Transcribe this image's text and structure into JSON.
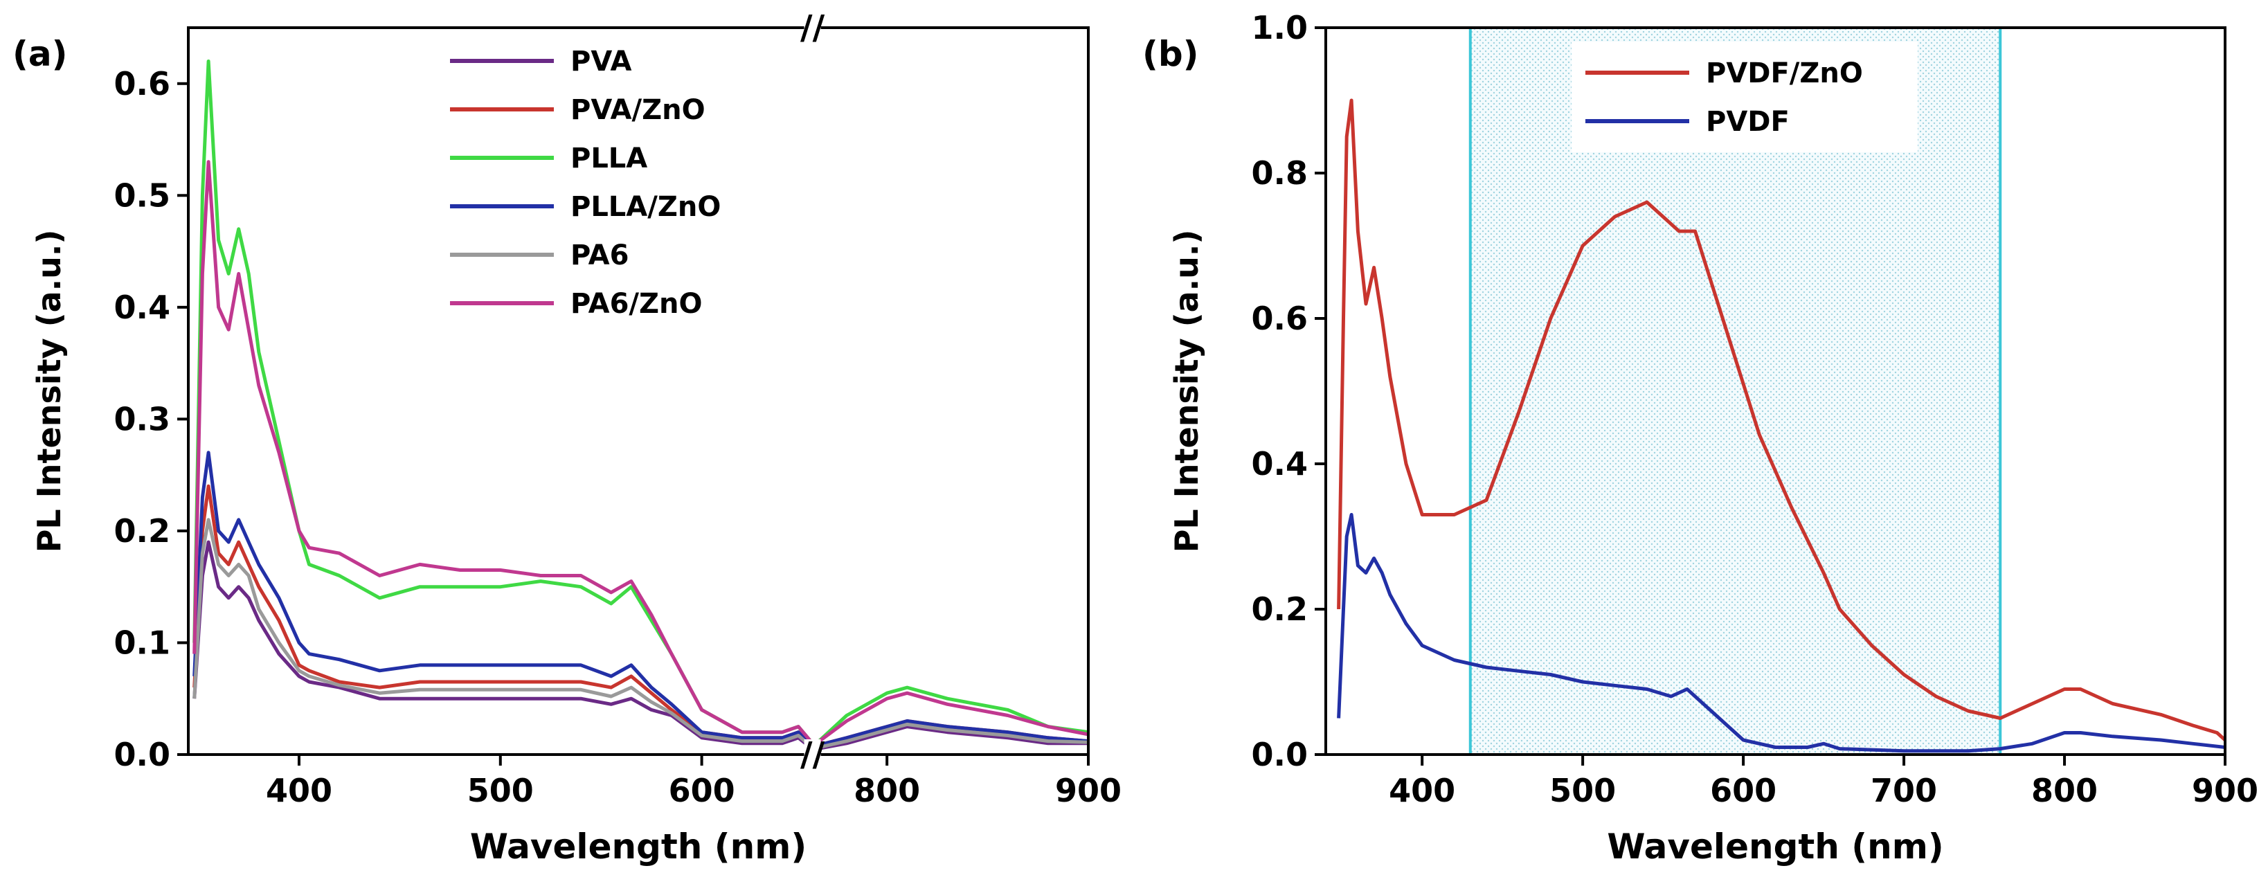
{
  "chart_data": [
    {
      "type": "line",
      "panel_label": "(a)",
      "xlabel": "Wavelength (nm)",
      "ylabel": "PL Intensity (a.u.)",
      "xlim": [
        345,
        900
      ],
      "ylim": [
        0,
        0.65
      ],
      "x_break": [
        655,
        763
      ],
      "x_break_symbol": "//",
      "x_ticks": [
        400,
        500,
        600,
        800,
        900
      ],
      "x_tick_labels": [
        "400",
        "500",
        "600",
        "800",
        "900"
      ],
      "y_ticks": [
        0.0,
        0.1,
        0.2,
        0.3,
        0.4,
        0.5,
        0.6
      ],
      "y_tick_labels": [
        "0.0",
        "0.1",
        "0.2",
        "0.3",
        "0.4",
        "0.5",
        "0.6"
      ],
      "legend_position": "top-center",
      "series": [
        {
          "name": "PVA",
          "color": "#6a2a86",
          "x": [
            348,
            352,
            355,
            360,
            365,
            370,
            375,
            380,
            390,
            400,
            405,
            420,
            440,
            460,
            480,
            500,
            520,
            540,
            555,
            565,
            575,
            585,
            600,
            620,
            640,
            648,
            655,
            765,
            780,
            800,
            810,
            830,
            860,
            880,
            900
          ],
          "y": [
            0.05,
            0.16,
            0.19,
            0.15,
            0.14,
            0.15,
            0.14,
            0.12,
            0.09,
            0.07,
            0.065,
            0.06,
            0.05,
            0.05,
            0.05,
            0.05,
            0.05,
            0.05,
            0.045,
            0.05,
            0.04,
            0.035,
            0.015,
            0.01,
            0.01,
            0.015,
            0.005,
            0.005,
            0.01,
            0.02,
            0.025,
            0.02,
            0.015,
            0.01,
            0.01
          ]
        },
        {
          "name": "PVA/ZnO",
          "color": "#c8352e",
          "x": [
            348,
            352,
            355,
            360,
            365,
            370,
            375,
            380,
            390,
            400,
            405,
            420,
            440,
            460,
            480,
            500,
            520,
            540,
            555,
            565,
            575,
            585,
            600,
            620,
            640,
            648,
            655,
            765,
            780,
            800,
            810,
            830,
            860,
            880,
            900
          ],
          "y": [
            0.06,
            0.2,
            0.24,
            0.18,
            0.17,
            0.19,
            0.17,
            0.15,
            0.12,
            0.08,
            0.075,
            0.065,
            0.06,
            0.065,
            0.065,
            0.065,
            0.065,
            0.065,
            0.06,
            0.07,
            0.055,
            0.04,
            0.02,
            0.015,
            0.015,
            0.02,
            0.008,
            0.008,
            0.015,
            0.025,
            0.03,
            0.025,
            0.02,
            0.015,
            0.012
          ]
        },
        {
          "name": "PLLA",
          "color": "#3fd944",
          "x": [
            348,
            352,
            355,
            360,
            365,
            370,
            375,
            380,
            390,
            400,
            405,
            420,
            440,
            460,
            480,
            500,
            520,
            540,
            555,
            565,
            575,
            585,
            600,
            620,
            640,
            648,
            655,
            765,
            780,
            800,
            810,
            830,
            860,
            880,
            900
          ],
          "y": [
            0.1,
            0.5,
            0.62,
            0.46,
            0.43,
            0.47,
            0.43,
            0.36,
            0.28,
            0.2,
            0.17,
            0.16,
            0.14,
            0.15,
            0.15,
            0.15,
            0.155,
            0.15,
            0.135,
            0.15,
            0.12,
            0.09,
            0.04,
            0.02,
            0.02,
            0.025,
            0.01,
            0.01,
            0.035,
            0.055,
            0.06,
            0.05,
            0.04,
            0.025,
            0.02
          ]
        },
        {
          "name": "PLLA/ZnO",
          "color": "#2230a6",
          "x": [
            348,
            352,
            355,
            360,
            365,
            370,
            375,
            380,
            390,
            400,
            405,
            420,
            440,
            460,
            480,
            500,
            520,
            540,
            555,
            565,
            575,
            585,
            600,
            620,
            640,
            648,
            655,
            765,
            780,
            800,
            810,
            830,
            860,
            880,
            900
          ],
          "y": [
            0.07,
            0.23,
            0.27,
            0.2,
            0.19,
            0.21,
            0.19,
            0.17,
            0.14,
            0.1,
            0.09,
            0.085,
            0.075,
            0.08,
            0.08,
            0.08,
            0.08,
            0.08,
            0.07,
            0.08,
            0.06,
            0.045,
            0.02,
            0.015,
            0.015,
            0.02,
            0.008,
            0.008,
            0.015,
            0.025,
            0.03,
            0.025,
            0.02,
            0.015,
            0.012
          ]
        },
        {
          "name": "PA6",
          "color": "#9a9a9a",
          "x": [
            348,
            352,
            355,
            360,
            365,
            370,
            375,
            380,
            390,
            400,
            405,
            420,
            440,
            460,
            480,
            500,
            520,
            540,
            555,
            565,
            575,
            585,
            600,
            620,
            640,
            648,
            655,
            765,
            780,
            800,
            810,
            830,
            860,
            880,
            900
          ],
          "y": [
            0.05,
            0.18,
            0.21,
            0.17,
            0.16,
            0.17,
            0.16,
            0.13,
            0.1,
            0.075,
            0.07,
            0.062,
            0.055,
            0.058,
            0.058,
            0.058,
            0.058,
            0.058,
            0.052,
            0.06,
            0.047,
            0.037,
            0.017,
            0.012,
            0.012,
            0.017,
            0.006,
            0.006,
            0.012,
            0.022,
            0.027,
            0.022,
            0.017,
            0.012,
            0.011
          ]
        },
        {
          "name": "PA6/ZnO",
          "color": "#c0388f",
          "x": [
            348,
            352,
            355,
            360,
            365,
            370,
            375,
            380,
            390,
            400,
            405,
            420,
            440,
            460,
            480,
            500,
            520,
            540,
            555,
            565,
            575,
            585,
            600,
            620,
            640,
            648,
            655,
            765,
            780,
            800,
            810,
            830,
            860,
            880,
            900
          ],
          "y": [
            0.09,
            0.43,
            0.53,
            0.4,
            0.38,
            0.43,
            0.38,
            0.33,
            0.27,
            0.2,
            0.185,
            0.18,
            0.16,
            0.17,
            0.165,
            0.165,
            0.16,
            0.16,
            0.145,
            0.155,
            0.125,
            0.09,
            0.04,
            0.02,
            0.02,
            0.025,
            0.01,
            0.01,
            0.03,
            0.05,
            0.055,
            0.045,
            0.035,
            0.025,
            0.018
          ]
        }
      ]
    },
    {
      "type": "line",
      "panel_label": "(b)",
      "xlabel": "Wavelength (nm)",
      "ylabel": "PL Intensity (a.u.)",
      "xlim": [
        340,
        900
      ],
      "ylim": [
        0,
        1.0
      ],
      "x_ticks": [
        400,
        500,
        600,
        700,
        800,
        900
      ],
      "x_tick_labels": [
        "400",
        "500",
        "600",
        "700",
        "800",
        "900"
      ],
      "y_ticks": [
        0.0,
        0.2,
        0.4,
        0.6,
        0.8,
        1.0
      ],
      "y_tick_labels": [
        "0.0",
        "0.2",
        "0.4",
        "0.6",
        "0.8",
        "1.0"
      ],
      "legend_position": "top-center",
      "highlight_region": {
        "x_range": [
          430,
          760
        ],
        "color": "#3cc7d8"
      },
      "series": [
        {
          "name": "PVDF/ZnO",
          "color": "#c8352e",
          "x": [
            348,
            351,
            353,
            356,
            360,
            365,
            370,
            375,
            380,
            390,
            400,
            405,
            420,
            440,
            460,
            480,
            500,
            520,
            540,
            550,
            560,
            570,
            590,
            610,
            630,
            650,
            660,
            680,
            700,
            720,
            740,
            760,
            780,
            800,
            810,
            830,
            860,
            880,
            895,
            900
          ],
          "y": [
            0.2,
            0.6,
            0.85,
            0.9,
            0.72,
            0.62,
            0.67,
            0.6,
            0.52,
            0.4,
            0.33,
            0.33,
            0.33,
            0.35,
            0.47,
            0.6,
            0.7,
            0.74,
            0.76,
            0.74,
            0.72,
            0.72,
            0.58,
            0.44,
            0.34,
            0.25,
            0.2,
            0.15,
            0.11,
            0.08,
            0.06,
            0.05,
            0.07,
            0.09,
            0.09,
            0.07,
            0.055,
            0.04,
            0.03,
            0.02
          ]
        },
        {
          "name": "PVDF",
          "color": "#2230a6",
          "x": [
            348,
            351,
            353,
            356,
            360,
            365,
            370,
            375,
            380,
            390,
            400,
            420,
            440,
            460,
            480,
            500,
            520,
            540,
            555,
            565,
            575,
            590,
            600,
            620,
            640,
            650,
            660,
            700,
            740,
            760,
            780,
            800,
            810,
            830,
            860,
            880,
            900
          ],
          "y": [
            0.05,
            0.2,
            0.3,
            0.33,
            0.26,
            0.25,
            0.27,
            0.25,
            0.22,
            0.18,
            0.15,
            0.13,
            0.12,
            0.115,
            0.11,
            0.1,
            0.095,
            0.09,
            0.08,
            0.09,
            0.07,
            0.04,
            0.02,
            0.01,
            0.01,
            0.015,
            0.008,
            0.005,
            0.005,
            0.008,
            0.015,
            0.03,
            0.03,
            0.025,
            0.02,
            0.015,
            0.01
          ]
        }
      ]
    }
  ]
}
